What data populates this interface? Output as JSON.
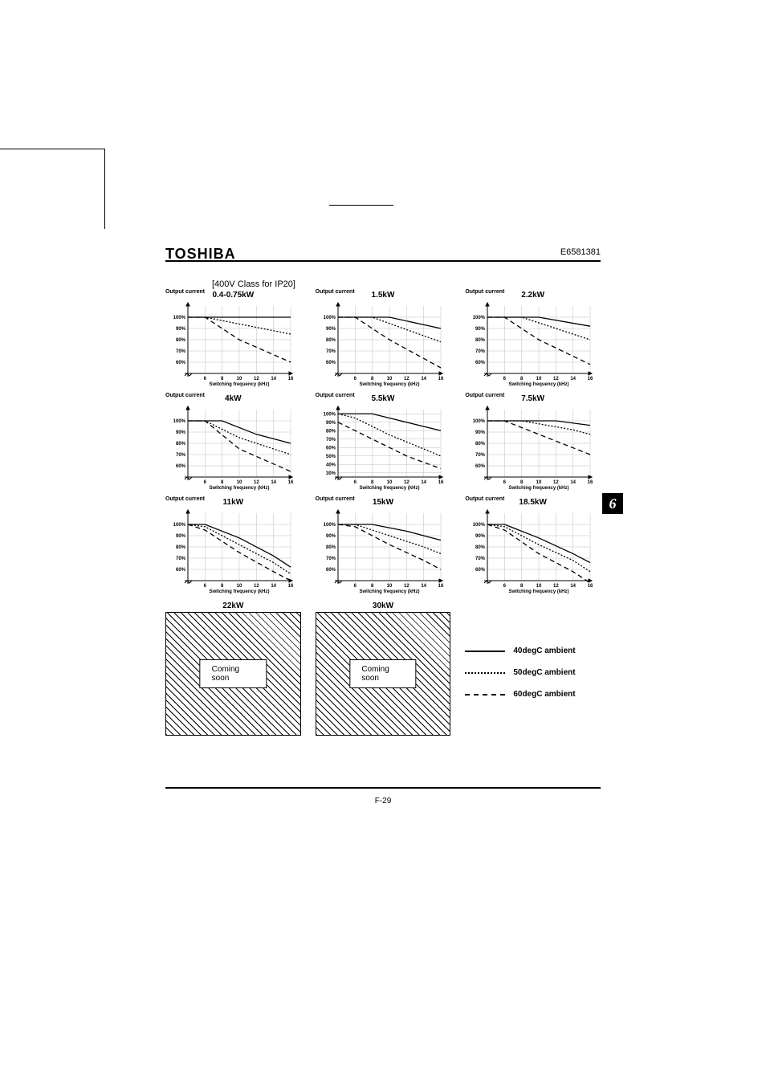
{
  "doc": {
    "brand": "TOSHIBA",
    "docnum": "E6581381",
    "page": "F-29",
    "section": "[400V Class for IP20]"
  },
  "sidetab": "6",
  "legend": [
    {
      "label": "40degC ambient",
      "style": "solid"
    },
    {
      "label": "50degC ambient",
      "style": "dot"
    },
    {
      "label": "60degC ambient",
      "style": "dash"
    }
  ],
  "axis": {
    "xlabel": "Switching frequency (kHz)",
    "ylabel": "Output current",
    "xticks": [
      6,
      8,
      10,
      12,
      14,
      16
    ],
    "xlim": [
      4,
      16
    ],
    "yticks_std": [
      "100%",
      "90%",
      "80%",
      "70%",
      "60%"
    ],
    "ylim_std": [
      50,
      110
    ],
    "yticks_ext": [
      "100%",
      "90%",
      "80%",
      "70%",
      "60%",
      "50%",
      "40%",
      "30%"
    ],
    "ylim_ext": [
      25,
      105
    ],
    "font": {
      "tick": 6,
      "label": 6
    },
    "colors": {
      "grid": "#bfbfbf",
      "axis": "#000",
      "series": "#000",
      "bg": "#ffffff"
    },
    "line_width": 1.3
  },
  "charts": [
    {
      "key": "c04",
      "title": "0.4-0.75kW",
      "ytype": "std",
      "series": {
        "s40": [
          [
            4,
            100
          ],
          [
            8,
            100
          ],
          [
            12,
            100
          ],
          [
            16,
            100
          ]
        ],
        "s50": [
          [
            4,
            100
          ],
          [
            6,
            100
          ],
          [
            16,
            85
          ]
        ],
        "s60": [
          [
            4,
            100
          ],
          [
            6,
            100
          ],
          [
            10,
            80
          ],
          [
            16,
            60
          ]
        ]
      }
    },
    {
      "key": "c15",
      "title": "1.5kW",
      "ytype": "std",
      "series": {
        "s40": [
          [
            4,
            100
          ],
          [
            10,
            100
          ],
          [
            16,
            90
          ]
        ],
        "s50": [
          [
            4,
            100
          ],
          [
            8,
            100
          ],
          [
            16,
            78
          ]
        ],
        "s60": [
          [
            4,
            100
          ],
          [
            6,
            100
          ],
          [
            10,
            80
          ],
          [
            16,
            55
          ]
        ]
      }
    },
    {
      "key": "c22",
      "title": "2.2kW",
      "ytype": "std",
      "series": {
        "s40": [
          [
            4,
            100
          ],
          [
            10,
            100
          ],
          [
            16,
            92
          ]
        ],
        "s50": [
          [
            4,
            100
          ],
          [
            8,
            100
          ],
          [
            14,
            85
          ],
          [
            16,
            80
          ]
        ],
        "s60": [
          [
            4,
            100
          ],
          [
            6,
            100
          ],
          [
            10,
            80
          ],
          [
            16,
            58
          ]
        ]
      }
    },
    {
      "key": "c4",
      "title": "4kW",
      "ytype": "std",
      "series": {
        "s40": [
          [
            4,
            100
          ],
          [
            8,
            100
          ],
          [
            12,
            88
          ],
          [
            16,
            80
          ]
        ],
        "s50": [
          [
            4,
            100
          ],
          [
            6,
            100
          ],
          [
            10,
            85
          ],
          [
            16,
            70
          ]
        ],
        "s60": [
          [
            4,
            100
          ],
          [
            6,
            100
          ],
          [
            10,
            75
          ],
          [
            16,
            55
          ]
        ]
      }
    },
    {
      "key": "c55",
      "title": "5.5kW",
      "ytype": "ext",
      "series": {
        "s40": [
          [
            4,
            100
          ],
          [
            8,
            100
          ],
          [
            16,
            80
          ]
        ],
        "s50": [
          [
            4,
            100
          ],
          [
            6,
            95
          ],
          [
            10,
            75
          ],
          [
            16,
            50
          ]
        ],
        "s60": [
          [
            4,
            90
          ],
          [
            8,
            70
          ],
          [
            12,
            50
          ],
          [
            16,
            35
          ]
        ]
      }
    },
    {
      "key": "c75",
      "title": "7.5kW",
      "ytype": "std",
      "series": {
        "s40": [
          [
            4,
            100
          ],
          [
            12,
            100
          ],
          [
            16,
            96
          ]
        ],
        "s50": [
          [
            4,
            100
          ],
          [
            8,
            100
          ],
          [
            14,
            92
          ],
          [
            16,
            88
          ]
        ],
        "s60": [
          [
            4,
            100
          ],
          [
            6,
            100
          ],
          [
            12,
            82
          ],
          [
            16,
            70
          ]
        ]
      }
    },
    {
      "key": "c11",
      "title": "11kW",
      "ytype": "std",
      "series": {
        "s40": [
          [
            4,
            100
          ],
          [
            6,
            100
          ],
          [
            10,
            88
          ],
          [
            14,
            72
          ],
          [
            16,
            62
          ]
        ],
        "s50": [
          [
            4,
            100
          ],
          [
            6,
            98
          ],
          [
            10,
            82
          ],
          [
            14,
            66
          ],
          [
            16,
            56
          ]
        ],
        "s60": [
          [
            4,
            100
          ],
          [
            6,
            95
          ],
          [
            10,
            75
          ],
          [
            14,
            58
          ],
          [
            16,
            50
          ]
        ]
      }
    },
    {
      "key": "c15b",
      "title": "15kW",
      "ytype": "std",
      "series": {
        "s40": [
          [
            4,
            100
          ],
          [
            8,
            100
          ],
          [
            12,
            94
          ],
          [
            16,
            86
          ]
        ],
        "s50": [
          [
            4,
            100
          ],
          [
            6,
            100
          ],
          [
            10,
            90
          ],
          [
            14,
            80
          ],
          [
            16,
            74
          ]
        ],
        "s60": [
          [
            4,
            100
          ],
          [
            6,
            98
          ],
          [
            10,
            82
          ],
          [
            14,
            68
          ],
          [
            16,
            60
          ]
        ]
      }
    },
    {
      "key": "c185",
      "title": "18.5kW",
      "ytype": "std",
      "series": {
        "s40": [
          [
            4,
            100
          ],
          [
            6,
            100
          ],
          [
            10,
            88
          ],
          [
            14,
            74
          ],
          [
            16,
            66
          ]
        ],
        "s50": [
          [
            4,
            100
          ],
          [
            6,
            98
          ],
          [
            10,
            82
          ],
          [
            14,
            68
          ],
          [
            16,
            58
          ]
        ],
        "s60": [
          [
            4,
            100
          ],
          [
            6,
            95
          ],
          [
            10,
            74
          ],
          [
            14,
            58
          ],
          [
            16,
            48
          ]
        ]
      }
    }
  ],
  "coming": [
    {
      "title": "22kW",
      "text": "Coming soon"
    },
    {
      "title": "30kW",
      "text": "Coming soon"
    }
  ],
  "chart_box": {
    "w": 160,
    "h": 108,
    "pad_l": 28,
    "pad_b": 18,
    "pad_t": 6,
    "pad_r": 4
  }
}
